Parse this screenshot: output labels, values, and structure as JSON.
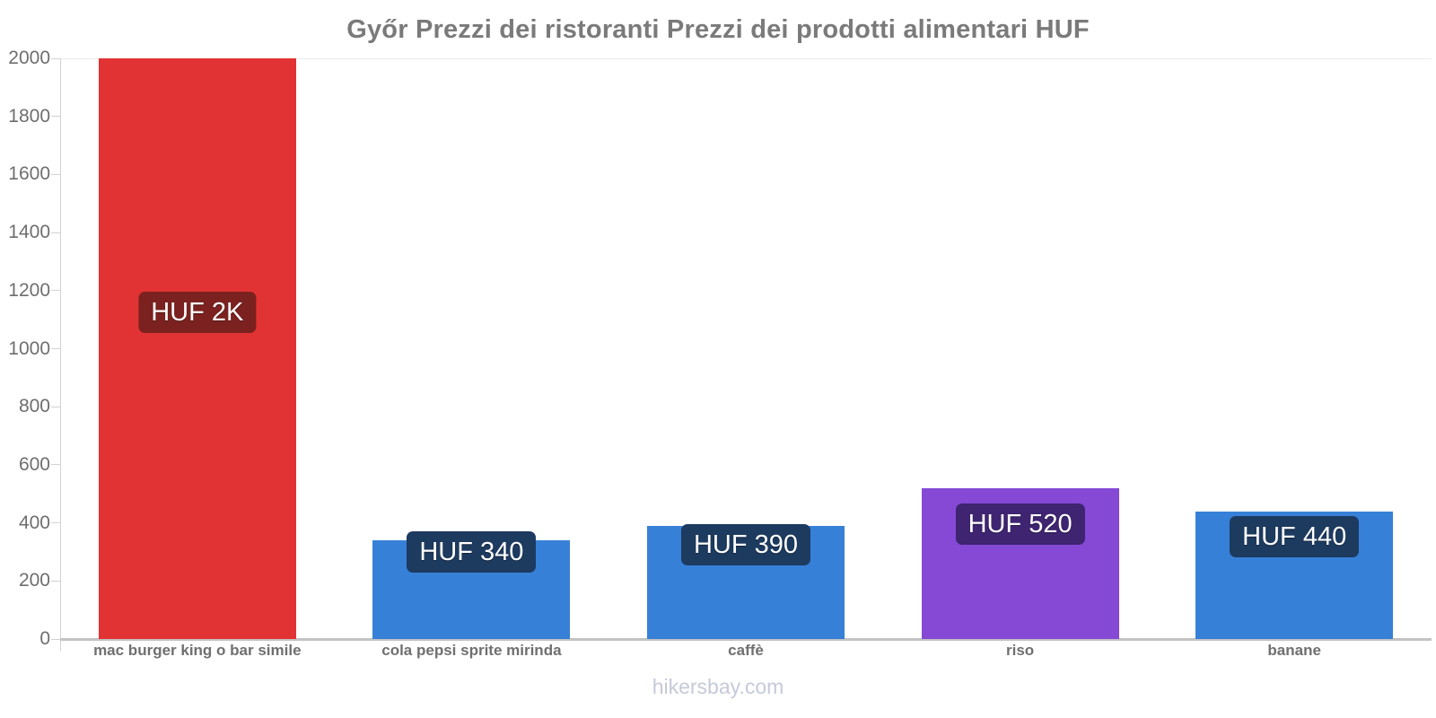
{
  "title": "Győr Prezzi dei ristoranti Prezzi dei prodotti alimentari HUF",
  "footer": "hikersbay.com",
  "chart_data": {
    "type": "bar",
    "title": "Győr Prezzi dei ristoranti Prezzi dei prodotti alimentari HUF",
    "categories": [
      "mac burger king o bar simile",
      "cola pepsi sprite mirinda",
      "caffè",
      "riso",
      "banane"
    ],
    "values": [
      2000,
      340,
      390,
      520,
      440
    ],
    "value_labels": [
      "HUF 2K",
      "HUF 340",
      "HUF 390",
      "HUF 520",
      "HUF 440"
    ],
    "bar_colors": [
      "#e23334",
      "#3780d8",
      "#3780d8",
      "#8549d6",
      "#3780d8"
    ],
    "value_label_bg_colors": [
      "#7b211f",
      "#1d3a5f",
      "#1d3a5f",
      "#3e2471",
      "#1d3a5f"
    ],
    "value_label_text_color": "#ffffff",
    "xlabel": "",
    "ylabel": "",
    "ylim": [
      0,
      2000
    ],
    "ytick_step": 200,
    "yticks": [
      "0",
      "200",
      "400",
      "600",
      "800",
      "1000",
      "1200",
      "1400",
      "1600",
      "1800",
      "2000"
    ],
    "grid": false,
    "legend": "none",
    "axis_color": "#c3c3c3",
    "tick_text_color": "#6e6e6e",
    "category_text_color": "#6f6f6f",
    "title_color": "#7a7a7a",
    "footer_color": "#c6c9da",
    "background_color": "#ffffff"
  }
}
